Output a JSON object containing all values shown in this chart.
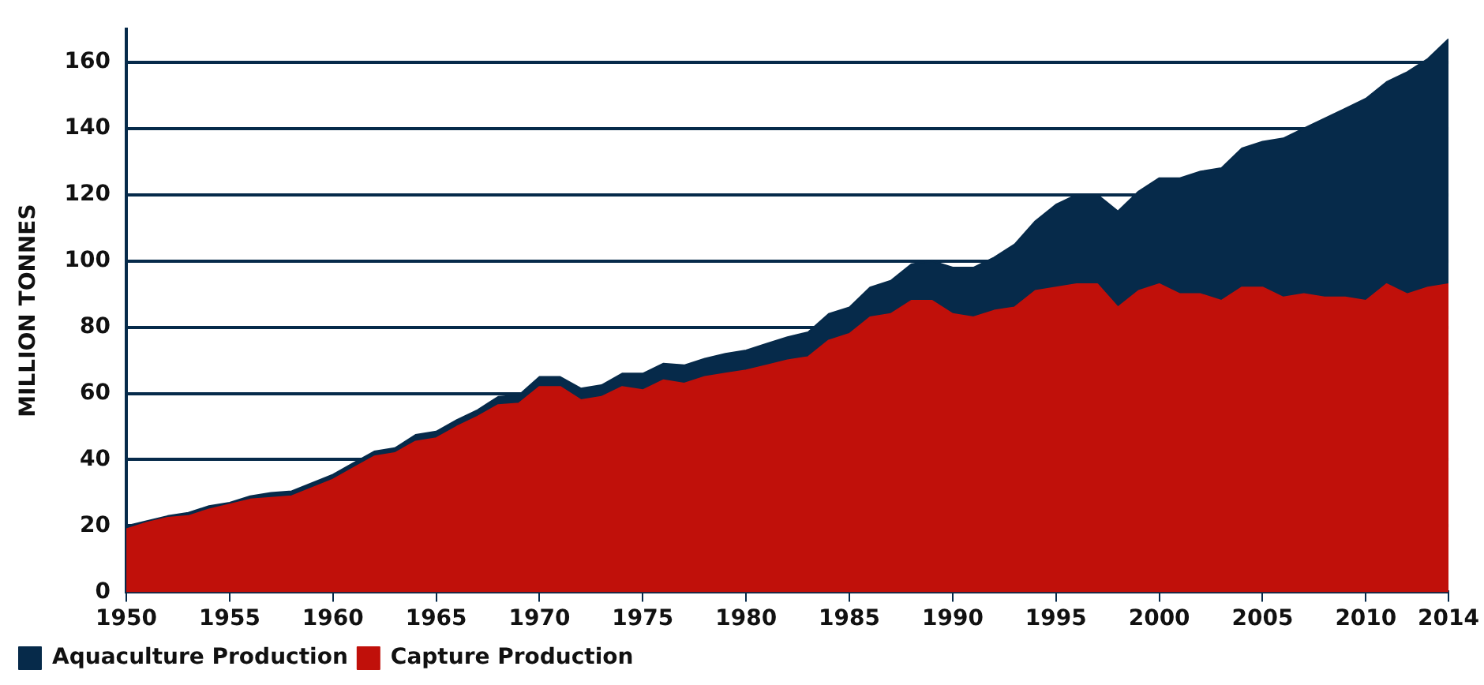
{
  "chart_data": {
    "type": "area",
    "stacked": true,
    "ylabel": "MILLION TONNES",
    "x": [
      1950,
      1951,
      1952,
      1953,
      1954,
      1955,
      1956,
      1957,
      1958,
      1959,
      1960,
      1961,
      1962,
      1963,
      1964,
      1965,
      1966,
      1967,
      1968,
      1969,
      1970,
      1971,
      1972,
      1973,
      1974,
      1975,
      1976,
      1977,
      1978,
      1979,
      1980,
      1981,
      1982,
      1983,
      1984,
      1985,
      1986,
      1987,
      1988,
      1989,
      1990,
      1991,
      1992,
      1993,
      1994,
      1995,
      1996,
      1997,
      1998,
      1999,
      2000,
      2001,
      2002,
      2003,
      2004,
      2005,
      2006,
      2007,
      2008,
      2009,
      2010,
      2011,
      2012,
      2013,
      2014
    ],
    "xlim": [
      1950,
      2014
    ],
    "xticks": [
      1950,
      1955,
      1960,
      1965,
      1970,
      1975,
      1980,
      1985,
      1990,
      1995,
      2000,
      2005,
      2010,
      2014
    ],
    "ylim": [
      0,
      170
    ],
    "yticks": [
      0,
      20,
      40,
      60,
      80,
      100,
      120,
      140,
      160
    ],
    "grid": "y",
    "legend": "bottom left",
    "series": [
      {
        "name": "Capture Production",
        "color": "#c0100a",
        "values": [
          19,
          21,
          22.5,
          23,
          25,
          26.5,
          28,
          28.5,
          29,
          31.5,
          34,
          37.5,
          41,
          42,
          45.5,
          46.5,
          50,
          53,
          56.5,
          57,
          62,
          62,
          58,
          59,
          62,
          61,
          64,
          63,
          65,
          66,
          67,
          68.5,
          70,
          71,
          76,
          78,
          83,
          84,
          88,
          88,
          84,
          83,
          85,
          86,
          91,
          92,
          93,
          93,
          86,
          91,
          93,
          90,
          90,
          88,
          92,
          92,
          89,
          90,
          89,
          89,
          88,
          93,
          90,
          92,
          93
        ]
      },
      {
        "name": "Aquaculture Production",
        "color": "#062a4a",
        "values": [
          1,
          0.5,
          0.5,
          1,
          1,
          0.5,
          1,
          1.5,
          1.5,
          1.5,
          1.5,
          1.5,
          1.5,
          1.5,
          2,
          2,
          2,
          2,
          2.5,
          2.5,
          3,
          3,
          3.5,
          3.5,
          4,
          5,
          5,
          5.5,
          5.5,
          6,
          6,
          6.5,
          7,
          7.5,
          8,
          8,
          9,
          10,
          11,
          12,
          14,
          15,
          16,
          19,
          21,
          25,
          27,
          27,
          29,
          30,
          32,
          35,
          37,
          40,
          42,
          44,
          48,
          50,
          54,
          57,
          61,
          61,
          67,
          69,
          74
        ]
      }
    ]
  }
}
